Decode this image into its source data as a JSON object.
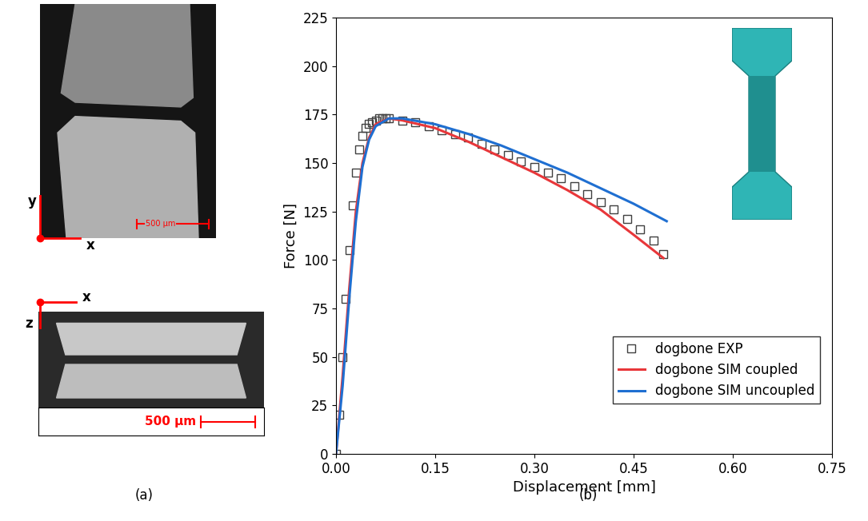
{
  "panels": {
    "a": {
      "label": "(a)",
      "top_image": {
        "axis_labels": [
          "y",
          "x"
        ],
        "scale_bar": "500 µm"
      },
      "bottom_image": {
        "axis_labels": [
          "x",
          "z"
        ],
        "scale_bar": "500 µm"
      }
    },
    "b": {
      "label": "(b)"
    }
  },
  "chart_data": {
    "type": "line",
    "x_label": "Displacement [mm]",
    "y_label": "Force [N]",
    "xlim": [
      0,
      0.75
    ],
    "xticks": [
      {
        "value": 0,
        "label": "0.00"
      },
      {
        "value": 0.15,
        "label": "0.15"
      },
      {
        "value": 0.3,
        "label": "0.30"
      },
      {
        "value": 0.45,
        "label": "0.45"
      },
      {
        "value": 0.6,
        "label": "0.60"
      },
      {
        "value": 0.75,
        "label": "0.75"
      }
    ],
    "ylim": [
      0,
      225
    ],
    "yticks": [
      0,
      25,
      50,
      75,
      100,
      125,
      150,
      175,
      200,
      225
    ],
    "grid": false,
    "legend": "lower right",
    "series": [
      {
        "name": "dogbone EXP",
        "color": "#404040",
        "marker": "square",
        "line_style": "none",
        "x": [
          0,
          0.005,
          0.01,
          0.015,
          0.02,
          0.025,
          0.03,
          0.035,
          0.04,
          0.045,
          0.05,
          0.055,
          0.06,
          0.065,
          0.07,
          0.075,
          0.08,
          0.1,
          0.12,
          0.14,
          0.16,
          0.18,
          0.2,
          0.22,
          0.24,
          0.26,
          0.28,
          0.3,
          0.32,
          0.34,
          0.36,
          0.38,
          0.4,
          0.42,
          0.44,
          0.46,
          0.48,
          0.495
        ],
        "values": [
          0,
          20,
          50,
          80,
          105,
          128,
          145,
          157,
          164,
          168,
          170,
          171,
          172,
          173,
          173,
          173,
          173,
          172,
          171,
          169,
          167,
          165,
          163,
          160,
          157,
          154,
          151,
          148,
          145,
          142,
          138,
          134,
          130,
          126,
          121,
          116,
          110,
          103
        ]
      },
      {
        "name": "dogbone SIM coupled",
        "color": "#e8373a",
        "marker": "none",
        "line_style": "solid",
        "x": [
          0,
          0.01,
          0.02,
          0.03,
          0.04,
          0.05,
          0.06,
          0.08,
          0.1,
          0.15,
          0.2,
          0.25,
          0.3,
          0.35,
          0.4,
          0.45,
          0.495
        ],
        "values": [
          0,
          40,
          85,
          125,
          150,
          163,
          170,
          173,
          172,
          168,
          161,
          153,
          145,
          136,
          126,
          113,
          101
        ]
      },
      {
        "name": "dogbone SIM uncoupled",
        "color": "#1f6fd1",
        "marker": "none",
        "line_style": "solid",
        "x": [
          0,
          0.01,
          0.02,
          0.03,
          0.04,
          0.05,
          0.06,
          0.08,
          0.1,
          0.15,
          0.2,
          0.25,
          0.3,
          0.35,
          0.4,
          0.45,
          0.5
        ],
        "values": [
          0,
          35,
          80,
          120,
          148,
          162,
          169,
          173,
          173,
          170,
          165,
          159,
          152,
          145,
          137,
          129,
          120
        ]
      }
    ]
  }
}
